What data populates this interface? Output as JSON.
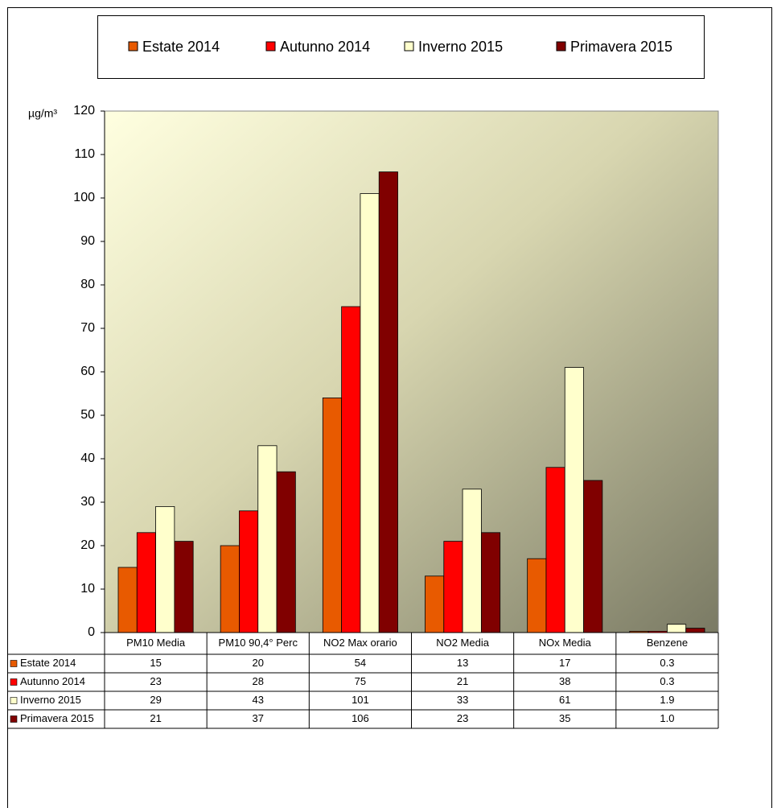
{
  "chart_data": {
    "type": "bar",
    "y_label": "µg/m³",
    "categories": [
      "PM10 Media",
      "PM10 90,4° Perc",
      "NO2 Max orario",
      "NO2 Media",
      "NOx Media",
      "Benzene"
    ],
    "series": [
      {
        "name": "Estate 2014",
        "color": "#e85a00",
        "values": [
          15,
          20,
          54,
          13,
          17,
          0.3
        ]
      },
      {
        "name": "Autunno 2014",
        "color": "#ff0000",
        "values": [
          23,
          28,
          75,
          21,
          38,
          0.3
        ]
      },
      {
        "name": "Inverno 2015",
        "color": "#ffffcc",
        "values": [
          29,
          43,
          101,
          33,
          61,
          1.9
        ]
      },
      {
        "name": "Primavera 2015",
        "color": "#800000",
        "values": [
          21,
          37,
          106,
          23,
          35,
          1.0
        ],
        "value_labels": [
          "21",
          "37",
          "106",
          "23",
          "35",
          "1.0"
        ]
      }
    ],
    "ylim": [
      0,
      120
    ],
    "yticks": [
      0,
      10,
      20,
      30,
      40,
      50,
      60,
      70,
      80,
      90,
      100,
      110,
      120
    ],
    "legend": "top"
  }
}
